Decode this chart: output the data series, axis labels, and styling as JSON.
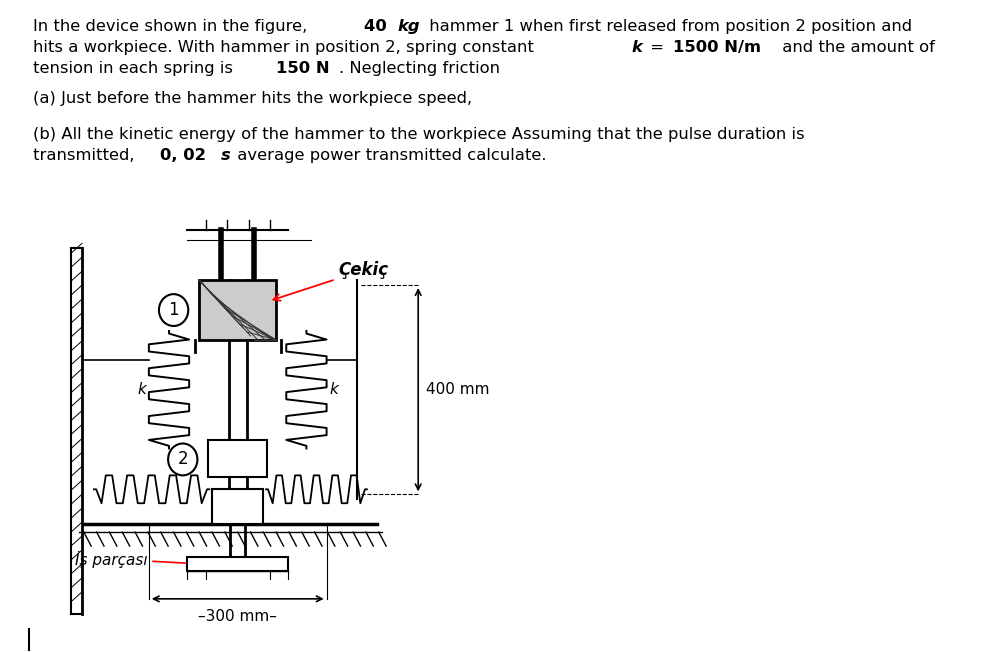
{
  "background_color": "#ffffff",
  "line1_parts": [
    [
      "In the device shown in the figure, ",
      false,
      false
    ],
    [
      "40 ",
      true,
      false
    ],
    [
      "kg",
      true,
      true
    ],
    [
      " hammer 1 when first released from position 2 position and",
      false,
      false
    ]
  ],
  "line2_parts": [
    [
      "hits a workpiece. With hammer in position 2, spring constant ",
      false,
      false
    ],
    [
      "k",
      true,
      true
    ],
    [
      " = ",
      false,
      false
    ],
    [
      "1500 N/m",
      true,
      false
    ],
    [
      " and the amount of",
      false,
      false
    ]
  ],
  "line3_parts": [
    [
      "tension in each spring is ",
      false,
      false
    ],
    [
      "150 N",
      true,
      false
    ],
    [
      ". Neglecting friction",
      false,
      false
    ]
  ],
  "line_a": "(a) Just before the hammer hits the workpiece speed,",
  "line_b1": "(b) All the kinetic energy of the hammer to the workpiece Assuming that the pulse duration is",
  "line_b2_parts": [
    [
      "transmitted, ",
      false,
      false
    ],
    [
      "0, 02 ",
      true,
      false
    ],
    [
      "s",
      true,
      true
    ],
    [
      " average power transmitted calculate.",
      false,
      false
    ]
  ],
  "label_cekic": "Çekiç",
  "label_is_parcasi": "İş parçası",
  "label_k_left": "k",
  "label_k_right": "k",
  "dim_400": "400 mm",
  "dim_300": "300 mm",
  "fig_width": 9.88,
  "fig_height": 6.52,
  "dpi": 100
}
